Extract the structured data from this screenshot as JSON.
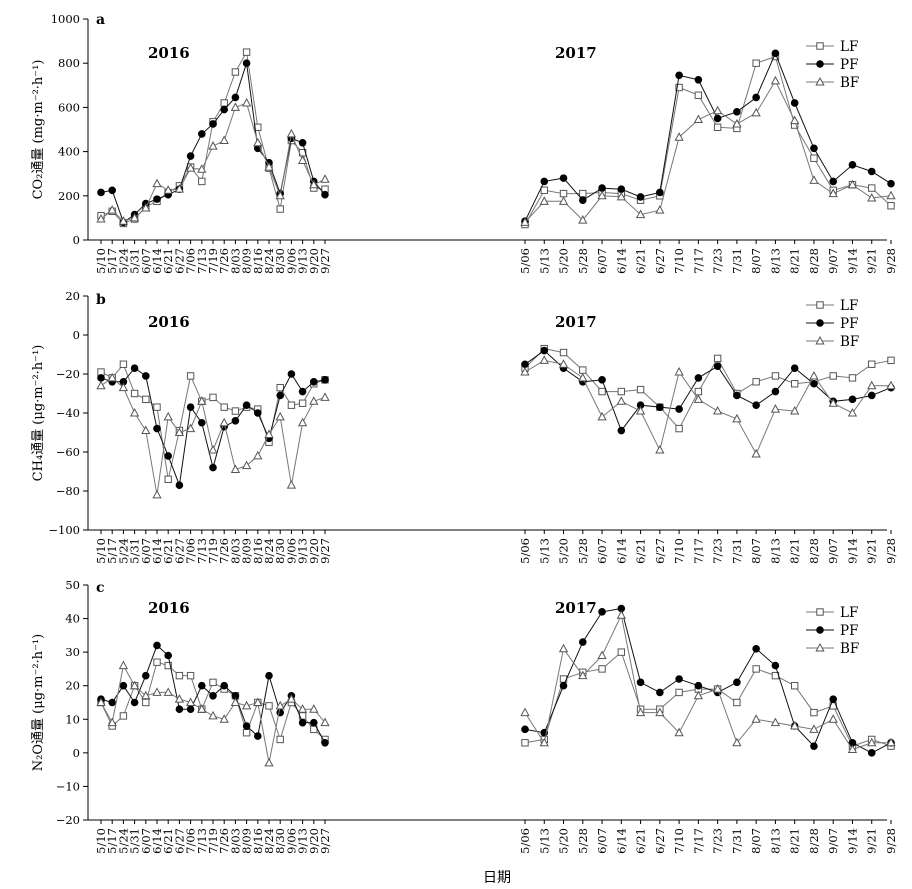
{
  "figure": {
    "xlabel": "日期"
  },
  "chart_data": [
    {
      "type": "line",
      "panel": "a",
      "ylabel": "CO₂通量 (mg·m⁻²·h⁻¹)",
      "ylim": [
        0,
        1000
      ],
      "yticks": [
        0,
        200,
        400,
        600,
        800,
        1000
      ],
      "grid": false,
      "legend": "top-right",
      "years": [
        {
          "label": "2016",
          "dates": [
            "5/10",
            "5/17",
            "5/24",
            "5/31",
            "6/07",
            "6/14",
            "6/21",
            "6/27",
            "7/06",
            "7/13",
            "7/19",
            "7/26",
            "8/03",
            "8/09",
            "8/16",
            "8/24",
            "8/30",
            "9/06",
            "9/13",
            "9/20",
            "9/27"
          ],
          "series": [
            {
              "name": "LF",
              "values": [
                110,
                130,
                75,
                95,
                150,
                175,
                215,
                245,
                330,
                265,
                535,
                620,
                760,
                850,
                510,
                325,
                140,
                450,
                395,
                235,
                230
              ]
            },
            {
              "name": "PF",
              "values": [
                215,
                225,
                80,
                115,
                165,
                185,
                205,
                230,
                380,
                480,
                525,
                590,
                645,
                800,
                415,
                350,
                210,
                460,
                440,
                265,
                205
              ]
            },
            {
              "name": "BF",
              "values": [
                95,
                135,
                85,
                100,
                145,
                255,
                225,
                230,
                325,
                320,
                425,
                450,
                600,
                620,
                440,
                330,
                200,
                480,
                360,
                250,
                275
              ]
            }
          ]
        },
        {
          "label": "2017",
          "dates": [
            "5/06",
            "5/13",
            "5/20",
            "5/28",
            "6/07",
            "6/14",
            "6/21",
            "6/27",
            "7/10",
            "7/17",
            "7/23",
            "7/31",
            "8/07",
            "8/13",
            "8/21",
            "8/28",
            "9/07",
            "9/14",
            "9/21",
            "9/28"
          ],
          "series": [
            {
              "name": "LF",
              "values": [
                70,
                225,
                210,
                210,
                215,
                210,
                180,
                200,
                690,
                655,
                510,
                505,
                800,
                830,
                520,
                370,
                225,
                250,
                235,
                155
              ]
            },
            {
              "name": "PF",
              "values": [
                85,
                265,
                280,
                180,
                235,
                230,
                195,
                215,
                745,
                725,
                550,
                580,
                645,
                845,
                620,
                415,
                265,
                340,
                310,
                255
              ]
            },
            {
              "name": "BF",
              "values": [
                80,
                175,
                175,
                90,
                200,
                195,
                115,
                135,
                465,
                545,
                585,
                525,
                575,
                720,
                540,
                270,
                210,
                250,
                190,
                200
              ]
            }
          ]
        }
      ]
    },
    {
      "type": "line",
      "panel": "b",
      "ylabel": "CH₄通量 (μg·m⁻²·h⁻¹)",
      "ylim": [
        -100,
        20
      ],
      "yticks": [
        -100,
        -80,
        -60,
        -40,
        -20,
        0,
        20
      ],
      "grid": false,
      "legend": "top-right",
      "years": [
        {
          "label": "2016",
          "dates": [
            "5/10",
            "5/17",
            "5/24",
            "5/31",
            "6/07",
            "6/14",
            "6/21",
            "6/27",
            "7/06",
            "7/13",
            "7/19",
            "7/26",
            "8/03",
            "8/09",
            "8/16",
            "8/24",
            "8/30",
            "9/06",
            "9/13",
            "9/20",
            "9/27"
          ],
          "series": [
            {
              "name": "LF",
              "values": [
                -19,
                -22,
                -15,
                -30,
                -33,
                -37,
                -74,
                -49,
                -21,
                -34,
                -32,
                -37,
                -39,
                -37,
                -38,
                -55,
                -27,
                -36,
                -35,
                -25,
                -23
              ]
            },
            {
              "name": "PF",
              "values": [
                -22,
                -24,
                -24,
                -17,
                -21,
                -48,
                -62,
                -77,
                -37,
                -45,
                -68,
                -47,
                -44,
                -36,
                -40,
                -53,
                -31,
                -20,
                -29,
                -24,
                -23
              ]
            },
            {
              "name": "BF",
              "values": [
                -26,
                -22,
                -27,
                -40,
                -49,
                -82,
                -42,
                -50,
                -48,
                -34,
                -59,
                -45,
                -69,
                -67,
                -62,
                -51,
                -42,
                -77,
                -45,
                -34,
                -32
              ]
            }
          ]
        },
        {
          "label": "2017",
          "dates": [
            "5/06",
            "5/13",
            "5/20",
            "5/28",
            "6/07",
            "6/14",
            "6/21",
            "6/27",
            "7/10",
            "7/17",
            "7/23",
            "7/31",
            "8/07",
            "8/13",
            "8/21",
            "8/28",
            "9/07",
            "9/14",
            "9/21",
            "9/28"
          ],
          "series": [
            {
              "name": "LF",
              "values": [
                -17,
                -7,
                -9,
                -18,
                -29,
                -29,
                -28,
                -37,
                -48,
                -29,
                -12,
                -30,
                -24,
                -21,
                -25,
                -24,
                -21,
                -22,
                -15,
                -13
              ]
            },
            {
              "name": "PF",
              "values": [
                -15,
                -8,
                -17,
                -24,
                -23,
                -49,
                -36,
                -37,
                -38,
                -22,
                -16,
                -31,
                -36,
                -29,
                -17,
                -25,
                -34,
                -33,
                -31,
                -27
              ]
            },
            {
              "name": "BF",
              "values": [
                -19,
                -13,
                -15,
                -22,
                -42,
                -34,
                -39,
                -59,
                -19,
                -33,
                -39,
                -43,
                -61,
                -38,
                -39,
                -21,
                -35,
                -40,
                -26,
                -26
              ]
            }
          ]
        }
      ]
    },
    {
      "type": "line",
      "panel": "c",
      "ylabel": "N₂O通量 (μg·m⁻²·h⁻¹)",
      "ylim": [
        -20,
        50
      ],
      "yticks": [
        -20,
        -10,
        0,
        10,
        20,
        30,
        40,
        50
      ],
      "grid": false,
      "legend": "top-right",
      "years": [
        {
          "label": "2016",
          "dates": [
            "5/10",
            "5/17",
            "5/24",
            "5/31",
            "6/07",
            "6/14",
            "6/21",
            "6/27",
            "7/06",
            "7/13",
            "7/19",
            "7/26",
            "8/03",
            "8/09",
            "8/16",
            "8/24",
            "8/30",
            "9/06",
            "9/13",
            "9/20",
            "9/27"
          ],
          "series": [
            {
              "name": "LF",
              "values": [
                15,
                8,
                11,
                20,
                15,
                27,
                26,
                23,
                23,
                13,
                21,
                19,
                17,
                6,
                15,
                14,
                4,
                15,
                11,
                7,
                4
              ]
            },
            {
              "name": "PF",
              "values": [
                16,
                15,
                20,
                15,
                23,
                32,
                29,
                13,
                13,
                20,
                17,
                20,
                17,
                8,
                5,
                23,
                12,
                17,
                9,
                9,
                3
              ]
            },
            {
              "name": "BF",
              "values": [
                15,
                9,
                26,
                20,
                17,
                18,
                18,
                16,
                15,
                13,
                11,
                10,
                15,
                14,
                15,
                -3,
                14,
                16,
                13,
                13,
                9
              ]
            }
          ]
        },
        {
          "label": "2017",
          "dates": [
            "5/06",
            "5/13",
            "5/20",
            "5/28",
            "6/07",
            "6/14",
            "6/21",
            "6/27",
            "7/10",
            "7/17",
            "7/23",
            "7/31",
            "8/07",
            "8/13",
            "8/21",
            "8/28",
            "9/07",
            "9/14",
            "9/21",
            "9/28"
          ],
          "series": [
            {
              "name": "LF",
              "values": [
                3,
                4,
                22,
                24,
                25,
                30,
                13,
                13,
                18,
                19,
                19,
                15,
                25,
                23,
                20,
                12,
                14,
                2,
                4,
                2
              ]
            },
            {
              "name": "PF",
              "values": [
                7,
                6,
                20,
                33,
                42,
                43,
                21,
                18,
                22,
                20,
                18,
                21,
                31,
                26,
                8,
                2,
                16,
                3,
                0,
                3
              ]
            },
            {
              "name": "BF",
              "values": [
                12,
                3,
                31,
                23,
                29,
                41,
                12,
                12,
                6,
                17,
                19,
                3,
                10,
                9,
                8,
                7,
                10,
                1,
                3,
                3
              ]
            }
          ]
        }
      ]
    }
  ]
}
